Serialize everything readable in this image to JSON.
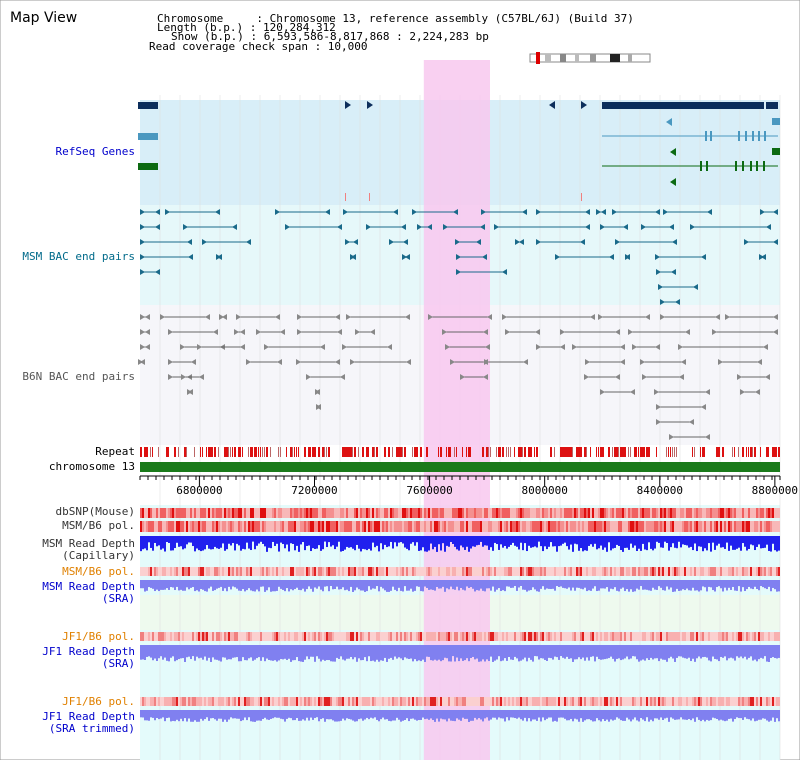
{
  "page": {
    "title": "Map View"
  },
  "header": {
    "chromosome_line": "Chromosome     : Chromosome 13, reference assembly (C57BL/6J) (Build 37)",
    "length_line": "Length (b.p.) : 120,284,312",
    "show_line": "Show (b.p.) : 6,593,586-8,817,868 : 2,224,283 bp",
    "coverage_line": "Read coverage check span : 10,000"
  },
  "tracks": {
    "refseq": {
      "label": "RefSeq Genes",
      "color": "#0000cc"
    },
    "msm_bac": {
      "label": "MSM BAC end pairs",
      "color": "#006a8a"
    },
    "b6n_bac": {
      "label": "B6N BAC end pairs",
      "color": "#555555"
    },
    "repeat": {
      "label": "Repeat",
      "color": "#000000"
    },
    "chromosome": {
      "label": "chromosome 13",
      "color": "#000000"
    },
    "dbsnp": {
      "label": "dbSNP(Mouse)",
      "color": "#333333"
    },
    "msm_b6_pol": {
      "label": "MSM/B6 pol.",
      "color": "#333333"
    },
    "msm_read_depth_cap": {
      "label": "MSM Read Depth\n(Capillary)",
      "color": "#333333"
    },
    "msm_b6_pol_sra": {
      "label": "MSM/B6 pol.",
      "color": "#e08000"
    },
    "msm_read_depth_sra": {
      "label": "MSM Read Depth\n(SRA)",
      "color": "#0000cc"
    },
    "jf1_b6_pol": {
      "label": "JF1/B6 pol.",
      "color": "#e08000"
    },
    "jf1_read_depth_sra": {
      "label": "JF1 Read Depth\n(SRA)",
      "color": "#0000cc"
    },
    "jf1_b6_pol2": {
      "label": "JF1/B6 pol.",
      "color": "#e08000"
    },
    "jf1_read_depth_trim": {
      "label": "JF1 Read Depth\n(SRA trimmed)",
      "color": "#0000cc"
    }
  },
  "axis": {
    "ticks": [
      {
        "value": 6800000,
        "label": "6800000"
      },
      {
        "value": 7200000,
        "label": "7200000"
      },
      {
        "value": 7600000,
        "label": "7600000"
      },
      {
        "value": 8000000,
        "label": "8000000"
      },
      {
        "value": 8400000,
        "label": "8400000"
      },
      {
        "value": 8800000,
        "label": "8800000"
      }
    ],
    "range": [
      6593586,
      8817868
    ]
  },
  "highlight": {
    "start": 7580000,
    "end": 7810000
  },
  "colors": {
    "refseq_bg": "#d8eef8",
    "bac_bg": "#e6f8fa",
    "b6n_bg": "#f6f6fa",
    "highlight": "#f8c8ee",
    "gene_dark": "#0c2e5c",
    "gene_light": "#4a98c0",
    "gene_green": "#0c6a12",
    "bac_line": "#1a6a8a",
    "b6n_line": "#666666",
    "repeat_red": "#dd1111",
    "chromosome_green": "#1a7a1a",
    "depth_blue": "#2020ee",
    "depth_light": "#8080f0",
    "pol_red": "#ee4444"
  }
}
